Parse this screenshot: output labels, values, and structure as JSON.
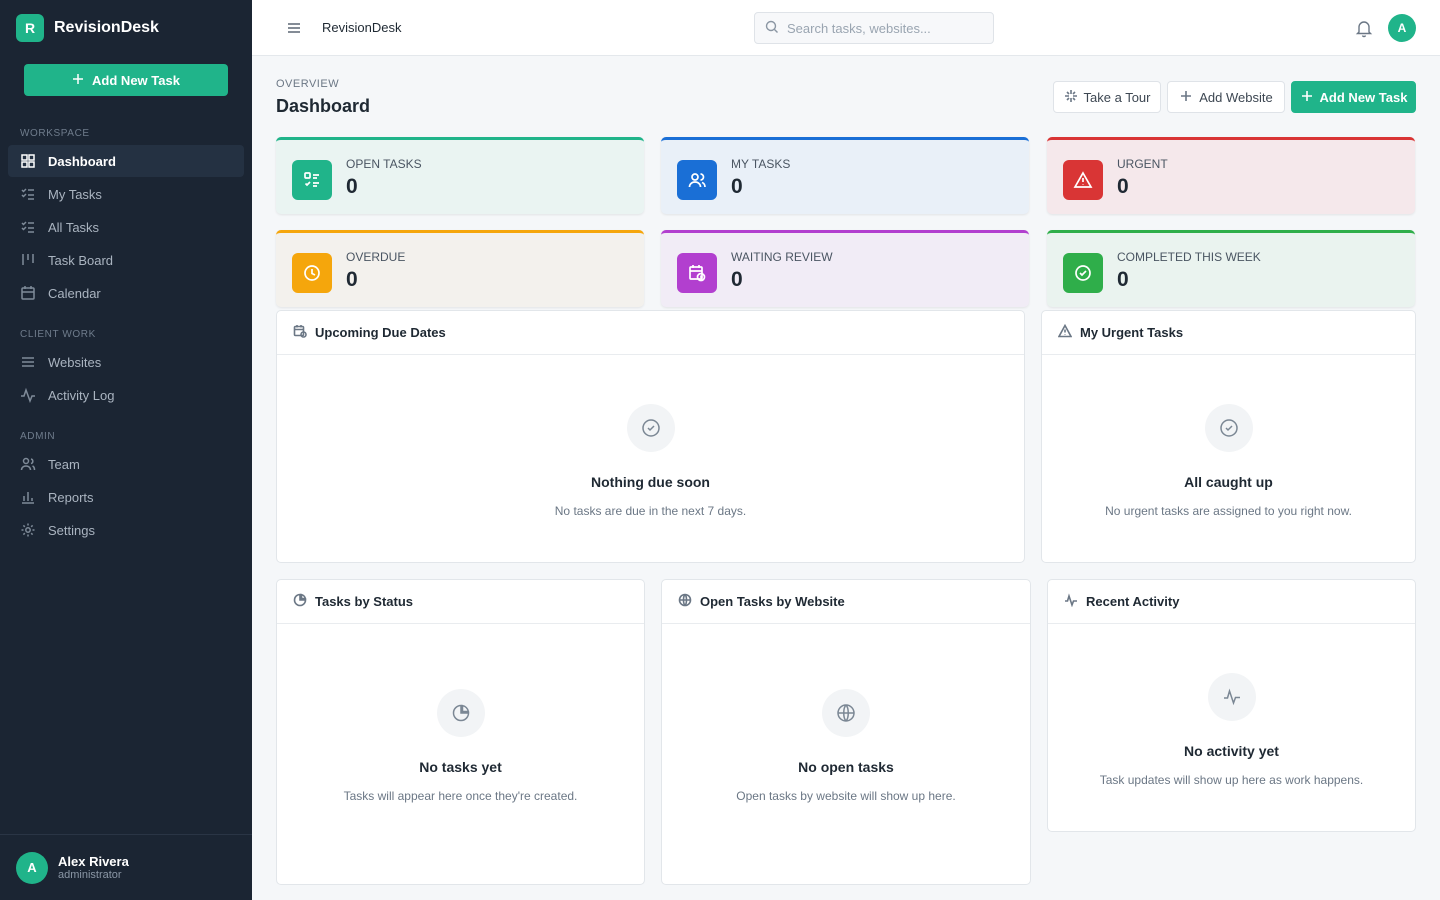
{
  "app": {
    "name": "RevisionDesk",
    "logo_letter": "R"
  },
  "sidebar": {
    "add_button": "Add New Task",
    "sections": {
      "workspace": "WORKSPACE",
      "client_work": "CLIENT WORK",
      "admin": "ADMIN"
    },
    "items": [
      {
        "label": "Dashboard",
        "icon": "grid-icon",
        "active": true
      },
      {
        "label": "My Tasks",
        "icon": "checklist-icon"
      },
      {
        "label": "All Tasks",
        "icon": "list-icon"
      },
      {
        "label": "Task Board",
        "icon": "kanban-icon"
      },
      {
        "label": "Calendar",
        "icon": "calendar-icon"
      },
      {
        "label": "Websites",
        "icon": "menu-lines-icon"
      },
      {
        "label": "Activity Log",
        "icon": "activity-icon"
      },
      {
        "label": "Team",
        "icon": "users-icon"
      },
      {
        "label": "Reports",
        "icon": "bar-chart-icon"
      },
      {
        "label": "Settings",
        "icon": "gear-icon"
      }
    ],
    "user": {
      "initial": "A",
      "name": "Alex Rivera",
      "role": "administrator"
    }
  },
  "topbar": {
    "title": "RevisionDesk",
    "search_placeholder": "Search tasks, websites...",
    "avatar_initial": "A"
  },
  "header": {
    "overline": "OVERVIEW",
    "title": "Dashboard",
    "buttons": {
      "tour": "Take a Tour",
      "add_website": "Add Website",
      "add_task": "Add New Task"
    }
  },
  "stats": [
    {
      "label": "OPEN TASKS",
      "value": "0",
      "color": "#20b48a",
      "bg": "#eaf4f2"
    },
    {
      "label": "MY TASKS",
      "value": "0",
      "color": "#1a6fd6",
      "bg": "#e9f0f8"
    },
    {
      "label": "URGENT",
      "value": "0",
      "color": "#d93535",
      "bg": "#f5e8eb"
    },
    {
      "label": "OVERDUE",
      "value": "0",
      "color": "#f5a60c",
      "bg": "#f3f1ed"
    },
    {
      "label": "WAITING REVIEW",
      "value": "0",
      "color": "#b23fcf",
      "bg": "#f1ecf6"
    },
    {
      "label": "COMPLETED THIS WEEK",
      "value": "0",
      "color": "#2fae4a",
      "bg": "#eaf3ef"
    }
  ],
  "panels": {
    "upcoming": {
      "title": "Upcoming Due Dates",
      "empty_title": "Nothing due soon",
      "empty_text": "No tasks are due in the next 7 days."
    },
    "urgent": {
      "title": "My Urgent Tasks",
      "empty_title": "All caught up",
      "empty_text": "No urgent tasks are assigned to you right now."
    },
    "status": {
      "title": "Tasks by Status",
      "empty_title": "No tasks yet",
      "empty_text": "Tasks will appear here once they're created."
    },
    "website": {
      "title": "Open Tasks by Website",
      "empty_title": "No open tasks",
      "empty_text": "Open tasks by website will show up here."
    },
    "activity": {
      "title": "Recent Activity",
      "empty_title": "No activity yet",
      "empty_text": "Task updates will show up here as work happens."
    }
  }
}
